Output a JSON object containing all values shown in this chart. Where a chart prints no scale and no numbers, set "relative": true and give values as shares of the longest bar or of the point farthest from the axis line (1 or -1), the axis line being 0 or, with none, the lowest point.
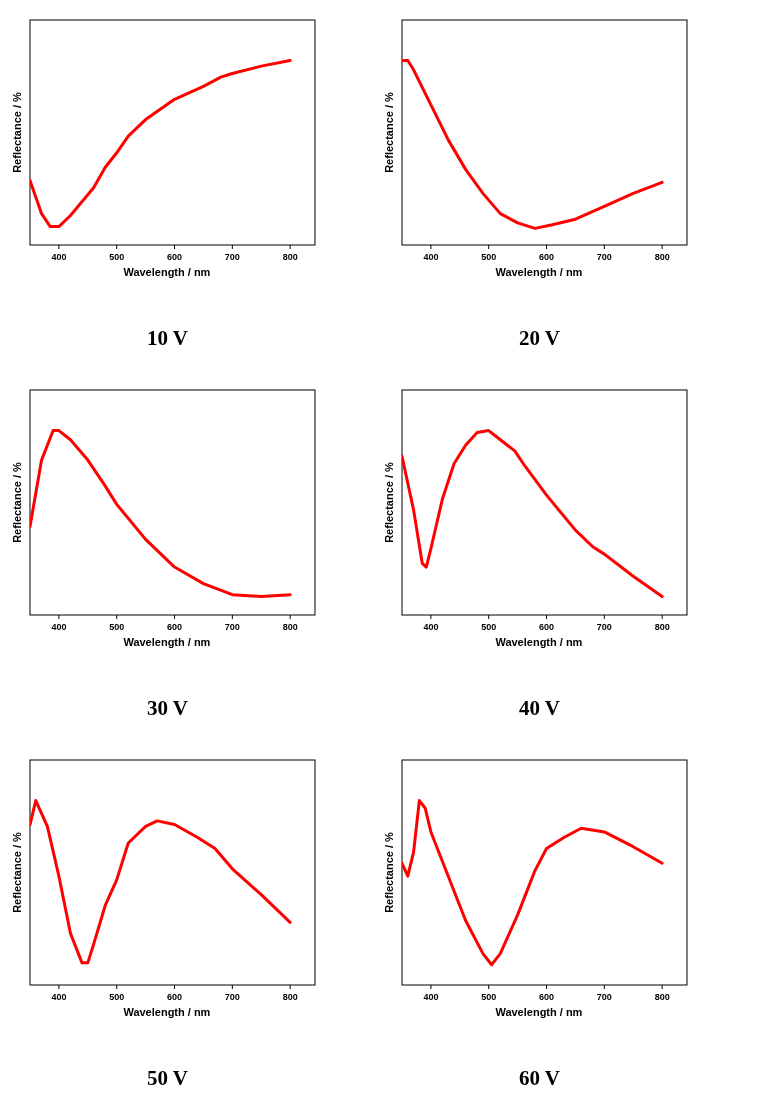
{
  "chart_data": [
    {
      "type": "line",
      "title": "10 V",
      "xlabel": "Wavelength / nm",
      "ylabel": "Reflectance / %",
      "relative": true,
      "xlim": [
        350,
        843
      ],
      "xticks": [
        400,
        500,
        600,
        700,
        800
      ],
      "x": [
        350,
        370,
        385,
        400,
        420,
        460,
        480,
        500,
        520,
        550,
        600,
        650,
        680,
        700,
        750,
        800
      ],
      "series": [
        {
          "color": "#ff0000",
          "values": [
            0.35,
            0.17,
            0.1,
            0.1,
            0.16,
            0.31,
            0.42,
            0.5,
            0.59,
            0.68,
            0.79,
            0.86,
            0.91,
            0.93,
            0.97,
            1.0
          ]
        }
      ]
    },
    {
      "type": "line",
      "title": "20 V",
      "xlabel": "Wavelength / nm",
      "ylabel": "Reflectance / %",
      "relative": true,
      "xlim": [
        350,
        843
      ],
      "xticks": [
        400,
        500,
        600,
        700,
        800
      ],
      "x": [
        350,
        360,
        370,
        400,
        430,
        460,
        490,
        520,
        550,
        580,
        610,
        650,
        700,
        750,
        800
      ],
      "series": [
        {
          "color": "#ff0000",
          "values": [
            1,
            1,
            0.95,
            0.76,
            0.57,
            0.41,
            0.28,
            0.17,
            0.12,
            0.09,
            0.11,
            0.14,
            0.21,
            0.28,
            0.34
          ]
        }
      ]
    },
    {
      "type": "line",
      "title": "30 V",
      "xlabel": "Wavelength / nm",
      "ylabel": "Reflectance / %",
      "relative": true,
      "xlim": [
        350,
        843
      ],
      "xticks": [
        400,
        500,
        600,
        700,
        800
      ],
      "x": [
        350,
        370,
        390,
        400,
        420,
        450,
        480,
        500,
        550,
        600,
        650,
        700,
        750,
        800
      ],
      "series": [
        {
          "color": "#ff0000",
          "values": [
            0.48,
            0.84,
            1,
            1,
            0.95,
            0.84,
            0.7,
            0.6,
            0.41,
            0.26,
            0.17,
            0.11,
            0.1,
            0.11
          ]
        }
      ]
    },
    {
      "type": "line",
      "title": "40 V",
      "xlabel": "Wavelength / nm",
      "ylabel": "Reflectance / %",
      "relative": true,
      "xlim": [
        350,
        843
      ],
      "xticks": [
        400,
        500,
        600,
        700,
        800
      ],
      "x": [
        350,
        370,
        385,
        392,
        400,
        420,
        440,
        460,
        480,
        500,
        520,
        545,
        560,
        600,
        650,
        680,
        700,
        750,
        800
      ],
      "series": [
        {
          "color": "#ff0000",
          "values": [
            0.86,
            0.57,
            0.28,
            0.26,
            0.36,
            0.63,
            0.82,
            0.92,
            0.99,
            1,
            0.95,
            0.89,
            0.82,
            0.65,
            0.46,
            0.37,
            0.33,
            0.21,
            0.1
          ]
        }
      ]
    },
    {
      "type": "line",
      "title": "50 V",
      "xlabel": "Wavelength / nm",
      "ylabel": "Reflectance / %",
      "relative": true,
      "xlim": [
        350,
        843
      ],
      "xticks": [
        400,
        500,
        600,
        700,
        800
      ],
      "x": [
        350,
        360,
        380,
        400,
        420,
        440,
        450,
        460,
        480,
        500,
        520,
        550,
        570,
        600,
        640,
        670,
        700,
        750,
        800
      ],
      "series": [
        {
          "color": "#ff0000",
          "values": [
            0.87,
            1,
            0.86,
            0.59,
            0.28,
            0.12,
            0.12,
            0.22,
            0.43,
            0.57,
            0.77,
            0.86,
            0.89,
            0.87,
            0.8,
            0.74,
            0.63,
            0.49,
            0.34
          ]
        }
      ]
    },
    {
      "type": "line",
      "title": "60 V",
      "xlabel": "Wavelength / nm",
      "ylabel": "Reflectance / %",
      "relative": true,
      "xlim": [
        350,
        843
      ],
      "xticks": [
        400,
        500,
        600,
        700,
        800
      ],
      "x": [
        350,
        360,
        370,
        380,
        390,
        400,
        430,
        460,
        490,
        505,
        520,
        550,
        580,
        600,
        630,
        660,
        700,
        750,
        800
      ],
      "series": [
        {
          "color": "#ff0000",
          "values": [
            0.66,
            0.59,
            0.72,
            1,
            0.96,
            0.83,
            0.59,
            0.35,
            0.17,
            0.11,
            0.17,
            0.38,
            0.62,
            0.74,
            0.8,
            0.85,
            0.83,
            0.75,
            0.66
          ]
        }
      ]
    }
  ]
}
